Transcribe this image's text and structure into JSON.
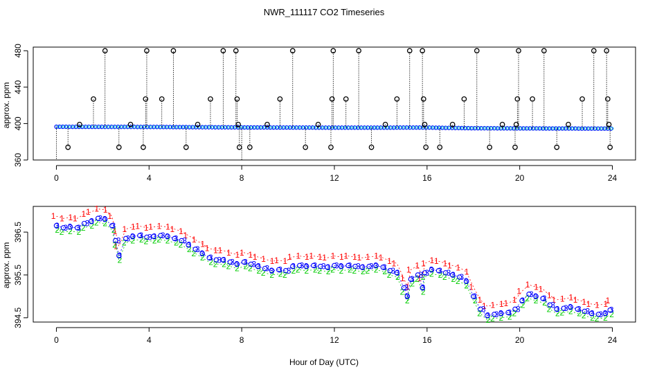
{
  "chart_data": {
    "title": "NWR_111117  CO2 Timeseries",
    "xlabel": "Hour of Day (UTC)",
    "x_ticks": [
      0,
      4,
      8,
      12,
      16,
      20,
      24
    ],
    "xlim": [
      -1,
      25
    ],
    "colors": {
      "series1": "#ff0000",
      "series2": "#00cc00",
      "series3": "#0000ff",
      "marker": "#000000",
      "cyan": "#00cccc"
    },
    "panels": [
      {
        "type": "scatter",
        "ylabel": "approx. ppm",
        "ylim": [
          360,
          484
        ],
        "y_ticks": [
          360,
          400,
          440,
          480
        ],
        "baseline": [
          [
            0,
            396.5
          ],
          [
            4,
            396.3
          ],
          [
            8,
            395.8
          ],
          [
            12,
            395.5
          ],
          [
            16,
            395.6
          ],
          [
            18,
            394.9
          ],
          [
            20,
            394.7
          ],
          [
            24,
            394.5
          ]
        ],
        "spikes": [
          {
            "x": 0.0,
            "y": 358
          },
          {
            "x": 0.5,
            "y": 374
          },
          {
            "x": 1.0,
            "y": 399
          },
          {
            "x": 1.6,
            "y": 427
          },
          {
            "x": 2.1,
            "y": 480
          },
          {
            "x": 2.7,
            "y": 374
          },
          {
            "x": 3.2,
            "y": 399
          },
          {
            "x": 3.75,
            "y": 374
          },
          {
            "x": 3.85,
            "y": 427
          },
          {
            "x": 3.9,
            "y": 480
          },
          {
            "x": 4.55,
            "y": 427
          },
          {
            "x": 5.05,
            "y": 480
          },
          {
            "x": 5.6,
            "y": 374
          },
          {
            "x": 6.1,
            "y": 399
          },
          {
            "x": 6.65,
            "y": 427
          },
          {
            "x": 7.2,
            "y": 480
          },
          {
            "x": 7.75,
            "y": 480
          },
          {
            "x": 7.8,
            "y": 427
          },
          {
            "x": 7.85,
            "y": 399
          },
          {
            "x": 7.9,
            "y": 374
          },
          {
            "x": 8.0,
            "y": 358
          },
          {
            "x": 8.35,
            "y": 374
          },
          {
            "x": 9.1,
            "y": 399
          },
          {
            "x": 9.65,
            "y": 427
          },
          {
            "x": 10.2,
            "y": 480
          },
          {
            "x": 10.75,
            "y": 374
          },
          {
            "x": 11.3,
            "y": 399
          },
          {
            "x": 11.85,
            "y": 374
          },
          {
            "x": 11.9,
            "y": 427
          },
          {
            "x": 11.95,
            "y": 480
          },
          {
            "x": 12.5,
            "y": 427
          },
          {
            "x": 13.05,
            "y": 480
          },
          {
            "x": 13.6,
            "y": 374
          },
          {
            "x": 14.2,
            "y": 399
          },
          {
            "x": 14.7,
            "y": 427
          },
          {
            "x": 15.25,
            "y": 480
          },
          {
            "x": 15.8,
            "y": 480
          },
          {
            "x": 15.85,
            "y": 427
          },
          {
            "x": 15.9,
            "y": 399
          },
          {
            "x": 15.95,
            "y": 374
          },
          {
            "x": 16.55,
            "y": 374
          },
          {
            "x": 17.1,
            "y": 399
          },
          {
            "x": 17.6,
            "y": 427
          },
          {
            "x": 18.15,
            "y": 480
          },
          {
            "x": 18.7,
            "y": 374
          },
          {
            "x": 19.25,
            "y": 399
          },
          {
            "x": 19.8,
            "y": 374
          },
          {
            "x": 19.85,
            "y": 399
          },
          {
            "x": 19.9,
            "y": 427
          },
          {
            "x": 19.95,
            "y": 480
          },
          {
            "x": 20.55,
            "y": 427
          },
          {
            "x": 21.05,
            "y": 480
          },
          {
            "x": 21.6,
            "y": 374
          },
          {
            "x": 22.1,
            "y": 399
          },
          {
            "x": 22.7,
            "y": 427
          },
          {
            "x": 23.2,
            "y": 480
          },
          {
            "x": 23.75,
            "y": 480
          },
          {
            "x": 23.8,
            "y": 427
          },
          {
            "x": 23.85,
            "y": 399
          },
          {
            "x": 23.9,
            "y": 374
          }
        ]
      },
      {
        "type": "line",
        "ylabel": "approx. ppm",
        "ylim": [
          394.4,
          397.1
        ],
        "y_ticks": [
          394.5,
          395.5,
          396.5
        ],
        "series": [
          {
            "name": "1",
            "offset": 0.22
          },
          {
            "name": "2",
            "offset": -0.1
          },
          {
            "name": "3",
            "offset": 0.0
          }
        ],
        "x": [
          0.0,
          0.3,
          0.6,
          0.9,
          1.2,
          1.5,
          1.8,
          2.1,
          2.4,
          2.55,
          2.7,
          3.0,
          3.3,
          3.6,
          3.9,
          4.2,
          4.5,
          4.8,
          5.1,
          5.4,
          5.7,
          6.0,
          6.3,
          6.6,
          6.9,
          7.2,
          7.5,
          7.8,
          8.1,
          8.4,
          8.7,
          9.0,
          9.3,
          9.6,
          9.9,
          10.2,
          10.5,
          10.8,
          11.1,
          11.4,
          11.7,
          12.0,
          12.3,
          12.6,
          12.9,
          13.2,
          13.5,
          13.8,
          14.1,
          14.4,
          14.7,
          15.0,
          15.15,
          15.3,
          15.6,
          15.8,
          15.9,
          16.2,
          16.5,
          16.8,
          17.1,
          17.4,
          17.7,
          18.0,
          18.3,
          18.6,
          18.9,
          19.2,
          19.5,
          19.8,
          20.1,
          20.4,
          20.7,
          21.0,
          21.3,
          21.6,
          21.9,
          22.2,
          22.5,
          22.8,
          23.1,
          23.4,
          23.7,
          23.9
        ],
        "y": [
          396.65,
          396.6,
          396.62,
          396.6,
          396.7,
          396.75,
          396.82,
          396.8,
          396.65,
          396.3,
          395.95,
          396.35,
          396.4,
          396.42,
          396.38,
          396.4,
          396.42,
          396.4,
          396.35,
          396.3,
          396.2,
          396.1,
          396.0,
          395.9,
          395.85,
          395.85,
          395.8,
          395.75,
          395.8,
          395.75,
          395.7,
          395.65,
          395.6,
          395.62,
          395.6,
          395.7,
          395.72,
          395.7,
          395.72,
          395.7,
          395.68,
          395.72,
          395.7,
          395.72,
          395.7,
          395.68,
          395.7,
          395.72,
          395.68,
          395.6,
          395.55,
          395.2,
          395.0,
          395.4,
          395.5,
          395.2,
          395.55,
          395.62,
          395.6,
          395.55,
          395.5,
          395.45,
          395.35,
          395.0,
          394.7,
          394.55,
          394.58,
          394.6,
          394.62,
          394.7,
          394.9,
          395.05,
          395.0,
          394.95,
          394.8,
          394.7,
          394.72,
          394.75,
          394.7,
          394.65,
          394.6,
          394.58,
          394.6,
          394.68
        ]
      }
    ]
  }
}
